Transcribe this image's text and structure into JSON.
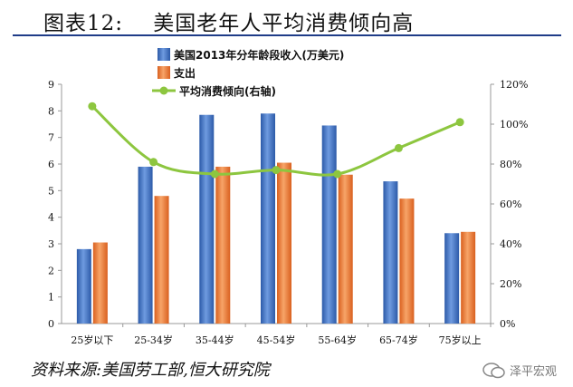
{
  "title": "图表12:    美国老年人平均消费倾向高",
  "footer": "资料来源:美国劳工部,恒大研究院",
  "watermark": "泽平宏观",
  "colors": {
    "income": "#3f6fbf",
    "expense": "#ec7b3a",
    "propensity": "#8dc63f",
    "rule": "#1f3c88"
  },
  "chart_data": {
    "type": "bar",
    "categories": [
      "25岁以下",
      "25-34岁",
      "35-44岁",
      "45-54岁",
      "55-64岁",
      "65-74岁",
      "75岁以上"
    ],
    "series": [
      {
        "name": "美国2013年分年龄段收入(万美元)",
        "type": "bar",
        "axis": "left",
        "values": [
          2.8,
          5.9,
          7.85,
          7.9,
          7.45,
          5.35,
          3.4
        ]
      },
      {
        "name": "支出",
        "type": "bar",
        "axis": "left",
        "values": [
          3.05,
          4.8,
          5.9,
          6.05,
          5.6,
          4.7,
          3.45
        ]
      },
      {
        "name": "平均消费倾向(右轴)",
        "type": "line",
        "axis": "right",
        "values": [
          109,
          81,
          75,
          77,
          75,
          88,
          101
        ]
      }
    ],
    "y_left": {
      "ylim": [
        0,
        9
      ],
      "ticks": [
        "0",
        "1",
        "2",
        "3",
        "4",
        "5",
        "6",
        "7",
        "8",
        "9"
      ]
    },
    "y_right": {
      "ylim": [
        0,
        120
      ],
      "ticks": [
        "0%",
        "20%",
        "40%",
        "60%",
        "80%",
        "100%",
        "120%"
      ]
    },
    "legend": "top-left",
    "grid": false
  }
}
